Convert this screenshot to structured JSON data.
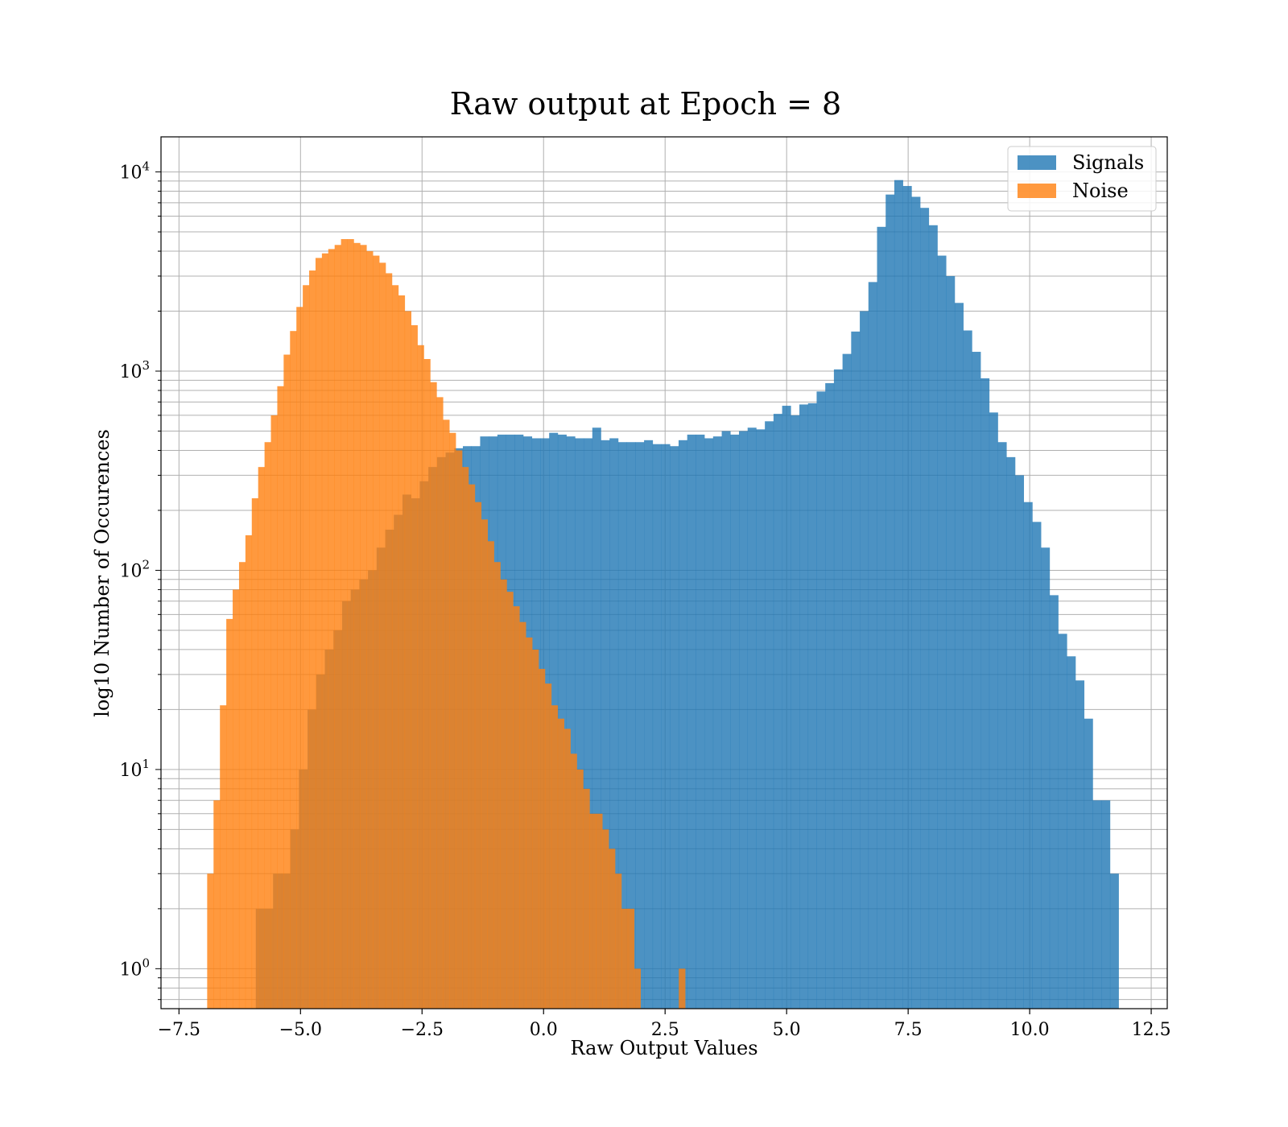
{
  "chart_data": {
    "type": "histogram",
    "title": "Raw output at Epoch = 8",
    "xlabel": "Raw Output Values",
    "ylabel": "log10 Number of Occurences",
    "xlim": [
      -7.87,
      12.83
    ],
    "ylim": [
      0.63,
      15000
    ],
    "yscale": "log",
    "grid": true,
    "legend_position": "top-right",
    "x_ticks": [
      -7.5,
      -5.0,
      -2.5,
      0.0,
      2.5,
      5.0,
      7.5,
      10.0,
      12.5
    ],
    "x_tick_labels": [
      "−7.5",
      "−5.0",
      "−2.5",
      "0.0",
      "2.5",
      "5.0",
      "7.5",
      "10.0",
      "12.5"
    ],
    "y_ticks": [
      {
        "value": 1,
        "base": "10",
        "exp": "0"
      },
      {
        "value": 10,
        "base": "10",
        "exp": "1"
      },
      {
        "value": 100,
        "base": "10",
        "exp": "2"
      },
      {
        "value": 1000,
        "base": "10",
        "exp": "3"
      },
      {
        "value": 10000,
        "base": "10",
        "exp": "4"
      }
    ],
    "series": [
      {
        "name": "Signals",
        "color": "#1f77b4",
        "bin_start": -5.92,
        "bin_width": 0.1775,
        "values": [
          2,
          2,
          3,
          3,
          5,
          10,
          20,
          30,
          40,
          50,
          70,
          80,
          90,
          100,
          130,
          160,
          190,
          240,
          230,
          280,
          330,
          370,
          390,
          410,
          420,
          420,
          470,
          470,
          480,
          480,
          480,
          470,
          460,
          460,
          490,
          480,
          470,
          460,
          460,
          520,
          450,
          460,
          440,
          440,
          440,
          450,
          430,
          430,
          420,
          450,
          480,
          480,
          460,
          470,
          500,
          480,
          500,
          520,
          510,
          560,
          610,
          670,
          600,
          680,
          690,
          790,
          870,
          1020,
          1220,
          1580,
          2000,
          2800,
          5300,
          7700,
          9100,
          8500,
          7500,
          6600,
          5400,
          3800,
          3000,
          2200,
          1600,
          1250,
          920,
          620,
          440,
          370,
          300,
          220,
          175,
          130,
          75,
          48,
          37,
          28,
          18,
          7,
          7,
          3
        ]
      },
      {
        "name": "Noise",
        "color": "#ff7f0e",
        "bin_start": -6.92,
        "bin_width": 0.1311,
        "values": [
          3,
          7,
          21,
          57,
          80,
          110,
          150,
          230,
          330,
          440,
          600,
          840,
          1210,
          1590,
          2100,
          2700,
          3200,
          3700,
          3900,
          4100,
          4300,
          4600,
          4600,
          4400,
          4300,
          4000,
          3800,
          3500,
          3100,
          2700,
          2400,
          2000,
          1700,
          1350,
          1150,
          880,
          740,
          570,
          490,
          400,
          330,
          270,
          220,
          180,
          140,
          110,
          90,
          78,
          66,
          55,
          46,
          40,
          32,
          27,
          21,
          18,
          16,
          12,
          10,
          8,
          6,
          6,
          5,
          4,
          3,
          2,
          2,
          1,
          0,
          0,
          0,
          0,
          0,
          0,
          1,
          0,
          0,
          0,
          0,
          0,
          0,
          0,
          0,
          0,
          0,
          0,
          0,
          0
        ]
      }
    ]
  }
}
